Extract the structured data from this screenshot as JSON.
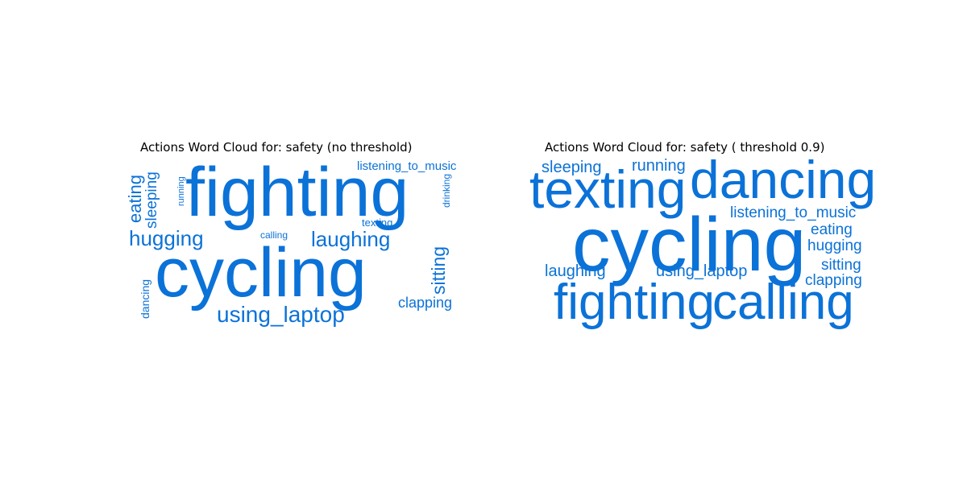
{
  "chart_data": [
    {
      "type": "wordcloud",
      "title": "Actions Word Cloud for: safety (no threshold)",
      "color": "#0b72d8",
      "words": [
        {
          "text": "fighting",
          "weight": 86
        },
        {
          "text": "cycling",
          "weight": 86
        },
        {
          "text": "laughing",
          "weight": 26
        },
        {
          "text": "using_laptop",
          "weight": 28
        },
        {
          "text": "hugging",
          "weight": 26
        },
        {
          "text": "sitting",
          "weight": 23
        },
        {
          "text": "eating",
          "weight": 22
        },
        {
          "text": "sleeping",
          "weight": 19
        },
        {
          "text": "clapping",
          "weight": 18
        },
        {
          "text": "listening_to_music",
          "weight": 15
        },
        {
          "text": "dancing",
          "weight": 14
        },
        {
          "text": "texting",
          "weight": 13
        },
        {
          "text": "drinking",
          "weight": 12
        },
        {
          "text": "calling",
          "weight": 12
        },
        {
          "text": "running",
          "weight": 11
        }
      ]
    },
    {
      "type": "wordcloud",
      "title": "Actions Word Cloud for: safety ( threshold 0.9)",
      "color": "#0b72d8",
      "words": [
        {
          "text": "cycling",
          "weight": 95
        },
        {
          "text": "texting",
          "weight": 66
        },
        {
          "text": "dancing",
          "weight": 66
        },
        {
          "text": "fighting",
          "weight": 62
        },
        {
          "text": "calling",
          "weight": 62
        },
        {
          "text": "sleeping",
          "weight": 20
        },
        {
          "text": "running",
          "weight": 20
        },
        {
          "text": "listening_to_music",
          "weight": 19
        },
        {
          "text": "eating",
          "weight": 19
        },
        {
          "text": "hugging",
          "weight": 19
        },
        {
          "text": "sitting",
          "weight": 19
        },
        {
          "text": "clapping",
          "weight": 19
        },
        {
          "text": "laughing",
          "weight": 20
        },
        {
          "text": "using_laptop",
          "weight": 20
        }
      ]
    }
  ]
}
